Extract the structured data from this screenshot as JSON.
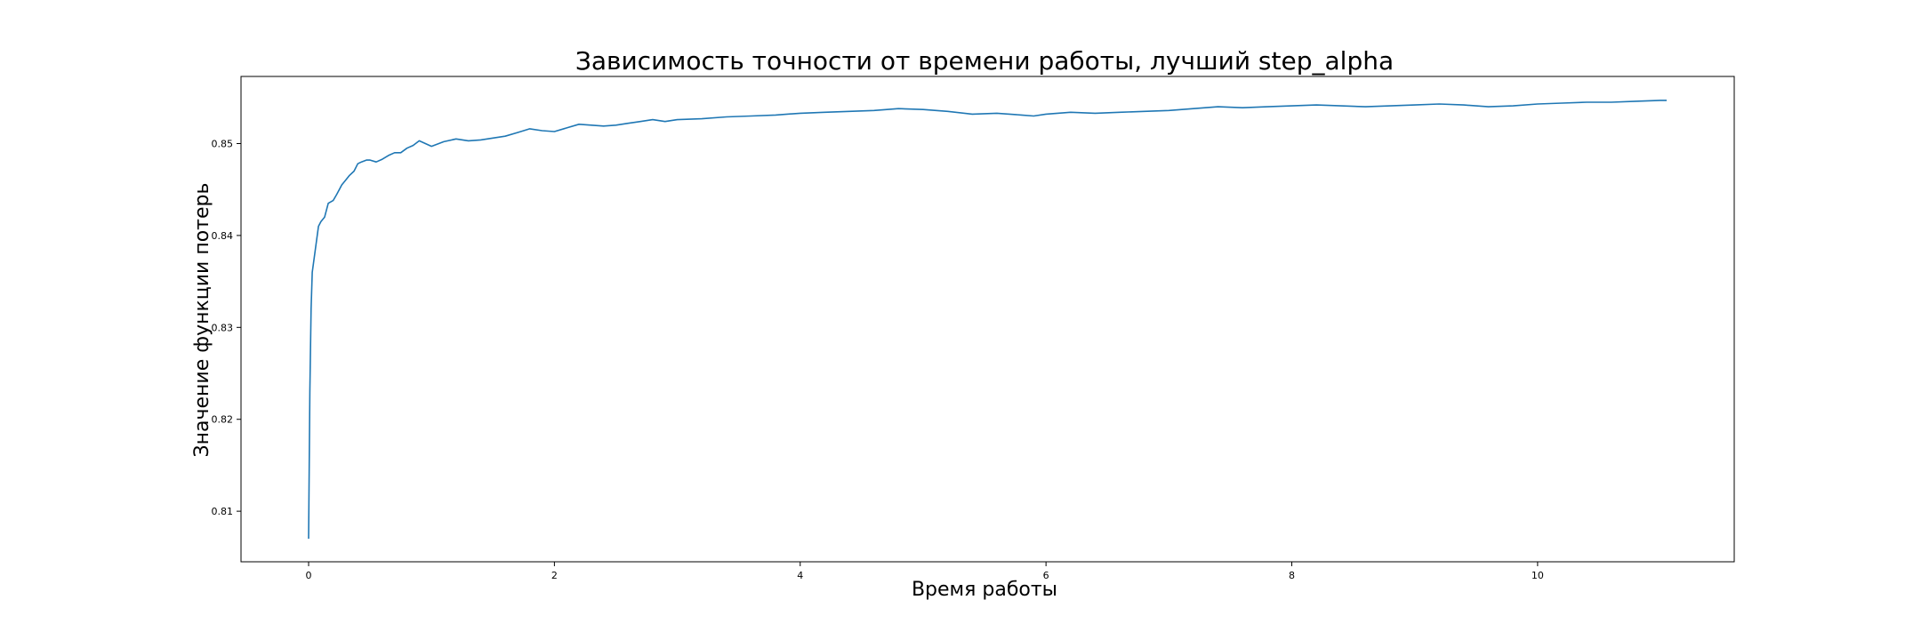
{
  "chart_data": {
    "type": "line",
    "title": "Зависимость точности от времени работы, лучший step_alpha",
    "xlabel": "Время работы",
    "ylabel": "Значение функции потерь",
    "xlim": [
      -0.55,
      11.6
    ],
    "ylim": [
      0.8045,
      0.8573
    ],
    "xticks": [
      0,
      2,
      4,
      6,
      8,
      10
    ],
    "xtick_labels": [
      "0",
      "2",
      "4",
      "6",
      "8",
      "10"
    ],
    "yticks": [
      0.81,
      0.82,
      0.83,
      0.84,
      0.85
    ],
    "ytick_labels": [
      "0.81",
      "0.82",
      "0.83",
      "0.84",
      "0.85"
    ],
    "grid": false,
    "legend": "none",
    "series": [
      {
        "color": "#1f77b4",
        "x": [
          0.0,
          0.01,
          0.02,
          0.03,
          0.05,
          0.08,
          0.1,
          0.13,
          0.16,
          0.2,
          0.23,
          0.27,
          0.3,
          0.33,
          0.37,
          0.4,
          0.43,
          0.47,
          0.5,
          0.55,
          0.6,
          0.65,
          0.7,
          0.75,
          0.8,
          0.85,
          0.9,
          0.95,
          1.0,
          1.1,
          1.2,
          1.3,
          1.4,
          1.5,
          1.6,
          1.7,
          1.8,
          1.9,
          2.0,
          2.1,
          2.2,
          2.3,
          2.4,
          2.5,
          2.6,
          2.7,
          2.8,
          2.9,
          3.0,
          3.2,
          3.4,
          3.6,
          3.8,
          4.0,
          4.2,
          4.4,
          4.6,
          4.8,
          5.0,
          5.2,
          5.4,
          5.6,
          5.8,
          5.9,
          6.0,
          6.2,
          6.4,
          6.6,
          6.8,
          7.0,
          7.2,
          7.4,
          7.6,
          7.8,
          8.0,
          8.2,
          8.4,
          8.6,
          8.8,
          9.0,
          9.2,
          9.4,
          9.6,
          9.8,
          10.0,
          10.2,
          10.4,
          10.6,
          10.8,
          11.0,
          11.05
        ],
        "values": [
          0.807,
          0.823,
          0.832,
          0.836,
          0.838,
          0.841,
          0.8415,
          0.842,
          0.8435,
          0.8438,
          0.8445,
          0.8455,
          0.846,
          0.8465,
          0.847,
          0.8478,
          0.848,
          0.8482,
          0.8482,
          0.848,
          0.8483,
          0.8487,
          0.849,
          0.849,
          0.8495,
          0.8498,
          0.8503,
          0.85,
          0.8497,
          0.8502,
          0.8505,
          0.8503,
          0.8504,
          0.8506,
          0.8508,
          0.8512,
          0.8516,
          0.8514,
          0.8513,
          0.8517,
          0.8521,
          0.852,
          0.8519,
          0.852,
          0.8522,
          0.8524,
          0.8526,
          0.8524,
          0.8526,
          0.8527,
          0.8529,
          0.853,
          0.8531,
          0.8533,
          0.8534,
          0.8535,
          0.8536,
          0.8538,
          0.8537,
          0.8535,
          0.8532,
          0.8533,
          0.8531,
          0.853,
          0.8532,
          0.8534,
          0.8533,
          0.8534,
          0.8535,
          0.8536,
          0.8538,
          0.854,
          0.8539,
          0.854,
          0.8541,
          0.8542,
          0.8541,
          0.854,
          0.8541,
          0.8542,
          0.8543,
          0.8542,
          0.854,
          0.8541,
          0.8543,
          0.8544,
          0.8545,
          0.8545,
          0.8546,
          0.8547,
          0.8547
        ]
      }
    ]
  }
}
